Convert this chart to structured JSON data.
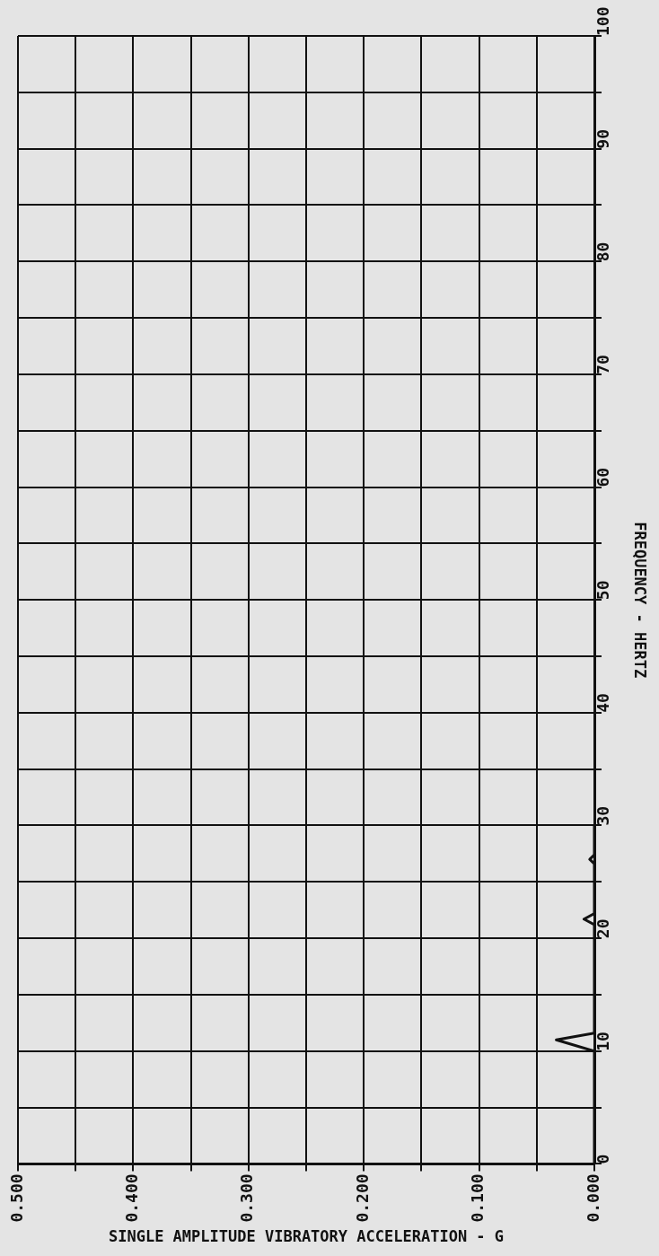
{
  "chart_data": {
    "type": "line",
    "ylabel": "FREQUENCY - HERTZ",
    "xlabel": "SINGLE AMPLITUDE VIBRATORY ACCELERATION - G",
    "series": [
      {
        "color": "#111111",
        "values": [
          0,
          10,
          11,
          11.6,
          21.2,
          21.7,
          22.2,
          26.6,
          27,
          27.4,
          30
        ],
        "x": [
          0,
          0,
          0.033,
          0,
          0,
          0.009,
          0,
          0,
          0.004,
          0,
          0
        ]
      }
    ],
    "ylim": [
      0,
      100
    ],
    "yticks": [
      0,
      {
        "value": 5,
        "label": null
      },
      10,
      {
        "value": 15,
        "label": null
      },
      20,
      {
        "value": 25,
        "label": null
      },
      30,
      {
        "value": 35,
        "label": null
      },
      40,
      {
        "value": 45,
        "label": null
      },
      50,
      {
        "value": 55,
        "label": null
      },
      60,
      {
        "value": 65,
        "label": null
      },
      70,
      {
        "value": 75,
        "label": null
      },
      80,
      {
        "value": 85,
        "label": null
      },
      90,
      {
        "value": 95,
        "label": null
      },
      100
    ],
    "xlim": [
      0.5,
      0
    ],
    "xticks": [
      {
        "value": 0,
        "label": "0.000"
      },
      {
        "value": 0.05,
        "label": null
      },
      {
        "value": 0.1,
        "label": "0.100"
      },
      {
        "value": 0.15,
        "label": null
      },
      {
        "value": 0.2,
        "label": "0.200"
      },
      {
        "value": 0.25,
        "label": null
      },
      {
        "value": 0.3,
        "label": "0.300"
      },
      {
        "value": 0.35,
        "label": null
      },
      {
        "value": 0.4,
        "label": "0.400"
      },
      {
        "value": 0.45,
        "label": null
      },
      {
        "value": 0.5,
        "label": "0.500"
      }
    ],
    "grid": true,
    "marker": "none",
    "line_style": "solid",
    "legend": false
  }
}
